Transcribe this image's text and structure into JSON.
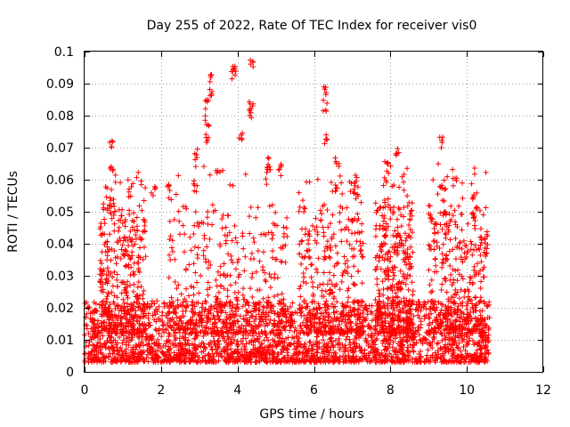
{
  "chart_data": {
    "type": "scatter",
    "title": "Day 255 of 2022, Rate Of TEC Index for receiver vis0",
    "xlabel": "GPS time / hours",
    "ylabel": "ROTI / TECUs",
    "xlim": [
      0,
      12
    ],
    "ylim": [
      0,
      0.1
    ],
    "grid": true,
    "marker": "+",
    "color": "#ff0000",
    "x_ticks": [
      "0",
      "2",
      "4",
      "6",
      "8",
      "10",
      "12"
    ],
    "y_ticks": [
      "0",
      "0.01",
      "0.02",
      "0.03",
      "0.04",
      "0.05",
      "0.06",
      "0.07",
      "0.08",
      "0.09",
      "0.1"
    ],
    "series": [
      {
        "name": "ROTI",
        "x_range": [
          0,
          10.6
        ],
        "baseline_range": [
          0.003,
          0.015
        ],
        "clusters": [
          {
            "x": 0.7,
            "y": [
              0.055,
              0.065,
              0.073
            ]
          },
          {
            "x": 1.2,
            "y": [
              0.058
            ]
          },
          {
            "x": 1.8,
            "y": [
              0.058
            ]
          },
          {
            "x": 2.2,
            "y": [
              0.06
            ]
          },
          {
            "x": 2.9,
            "y": [
              0.06,
              0.07
            ]
          },
          {
            "x": 3.2,
            "y": [
              0.075,
              0.08,
              0.086
            ]
          },
          {
            "x": 3.3,
            "y": [
              0.089,
              0.093
            ]
          },
          {
            "x": 3.9,
            "y": [
              0.094,
              0.097
            ]
          },
          {
            "x": 4.1,
            "y": [
              0.075
            ]
          },
          {
            "x": 4.35,
            "y": [
              0.082,
              0.086,
              0.099
            ]
          },
          {
            "x": 4.8,
            "y": [
              0.064,
              0.067
            ]
          },
          {
            "x": 5.1,
            "y": [
              0.065
            ]
          },
          {
            "x": 6.3,
            "y": [
              0.09,
              0.085,
              0.075
            ]
          },
          {
            "x": 6.6,
            "y": [
              0.068,
              0.06
            ]
          },
          {
            "x": 7.1,
            "y": [
              0.062,
              0.058
            ]
          },
          {
            "x": 7.9,
            "y": [
              0.066,
              0.055
            ]
          },
          {
            "x": 8.2,
            "y": [
              0.071
            ]
          },
          {
            "x": 9.35,
            "y": [
              0.074,
              0.06
            ]
          },
          {
            "x": 9.7,
            "y": [
              0.061
            ]
          },
          {
            "x": 10.2,
            "y": [
              0.057,
              0.052
            ]
          },
          {
            "x": 10.5,
            "y": [
              0.045,
              0.04
            ]
          }
        ]
      }
    ]
  }
}
